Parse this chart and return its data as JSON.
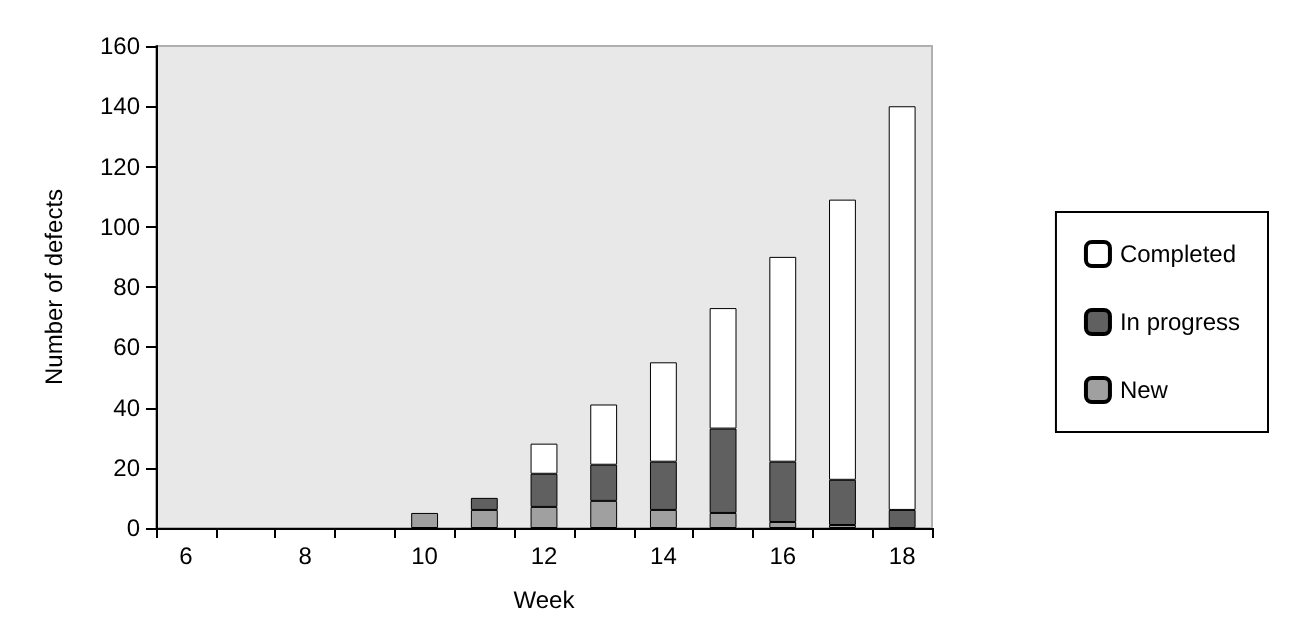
{
  "chart_data": {
    "type": "bar",
    "stacked": true,
    "xlabel": "Week",
    "ylabel": "Number of defects",
    "categories": [
      "6",
      null,
      "8",
      null,
      "10",
      null,
      "12",
      null,
      "14",
      null,
      "16",
      null,
      "18"
    ],
    "series": [
      {
        "name": "New",
        "color": "#a0a0a0",
        "values": [
          0,
          0,
          0,
          0,
          5,
          6,
          7,
          9,
          6,
          5,
          2,
          1,
          0
        ]
      },
      {
        "name": "In progress",
        "color": "#606060",
        "values": [
          0,
          0,
          0,
          0,
          0,
          4,
          11,
          12,
          16,
          28,
          20,
          15,
          6
        ]
      },
      {
        "name": "Completed",
        "color": "#ffffff",
        "values": [
          0,
          0,
          0,
          0,
          0,
          0,
          10,
          20,
          33,
          40,
          68,
          93,
          134
        ]
      }
    ],
    "ylim": [
      0,
      160
    ],
    "yticks": [
      0,
      20,
      40,
      60,
      80,
      100,
      120,
      140,
      160
    ],
    "grid": false,
    "legend": "right"
  }
}
